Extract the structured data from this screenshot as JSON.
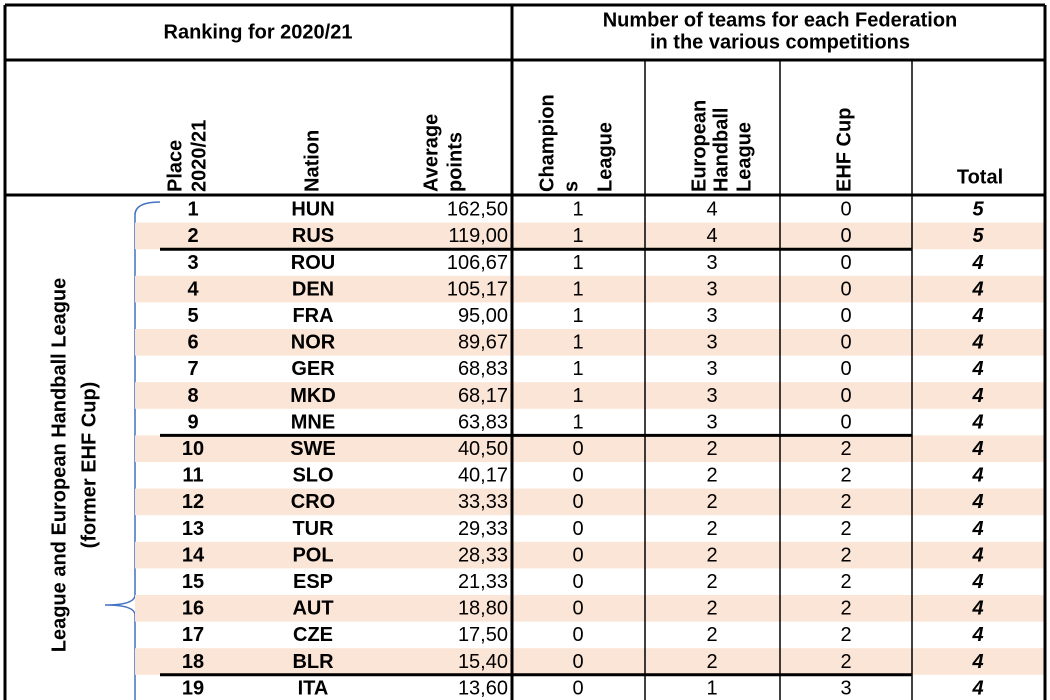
{
  "header": {
    "ranking_title": "Ranking for 2020/21",
    "teams_title": [
      "Number of teams for each Federation",
      "in the various competitions"
    ],
    "columns": {
      "place": [
        "Place",
        "2020/21"
      ],
      "nation": [
        "Nation"
      ],
      "average": [
        "Average",
        "points"
      ],
      "champions": [
        "Champion",
        "s",
        "League"
      ],
      "ehl": [
        "European",
        "Handball",
        "League"
      ],
      "ehf": [
        "EHF Cup"
      ],
      "total": "Total"
    }
  },
  "side_label": [
    "League and European Handball League",
    "(former EHF Cup)"
  ],
  "table": {
    "rows": [
      [
        "1",
        "HUN",
        "162,50",
        "1",
        "4",
        "0",
        "5"
      ],
      [
        "2",
        "RUS",
        "119,00",
        "1",
        "4",
        "0",
        "5"
      ],
      [
        "3",
        "ROU",
        "106,67",
        "1",
        "3",
        "0",
        "4"
      ],
      [
        "4",
        "DEN",
        "105,17",
        "1",
        "3",
        "0",
        "4"
      ],
      [
        "5",
        "FRA",
        "95,00",
        "1",
        "3",
        "0",
        "4"
      ],
      [
        "6",
        "NOR",
        "89,67",
        "1",
        "3",
        "0",
        "4"
      ],
      [
        "7",
        "GER",
        "68,83",
        "1",
        "3",
        "0",
        "4"
      ],
      [
        "8",
        "MKD",
        "68,17",
        "1",
        "3",
        "0",
        "4"
      ],
      [
        "9",
        "MNE",
        "63,83",
        "1",
        "3",
        "0",
        "4"
      ],
      [
        "10",
        "SWE",
        "40,50",
        "0",
        "2",
        "2",
        "4"
      ],
      [
        "11",
        "SLO",
        "40,17",
        "0",
        "2",
        "2",
        "4"
      ],
      [
        "12",
        "CRO",
        "33,33",
        "0",
        "2",
        "2",
        "4"
      ],
      [
        "13",
        "TUR",
        "29,33",
        "0",
        "2",
        "2",
        "4"
      ],
      [
        "14",
        "POL",
        "28,33",
        "0",
        "2",
        "2",
        "4"
      ],
      [
        "15",
        "ESP",
        "21,33",
        "0",
        "2",
        "2",
        "4"
      ],
      [
        "16",
        "AUT",
        "18,80",
        "0",
        "2",
        "2",
        "4"
      ],
      [
        "17",
        "CZE",
        "17,50",
        "0",
        "2",
        "2",
        "4"
      ],
      [
        "18",
        "BLR",
        "15,40",
        "0",
        "2",
        "2",
        "4"
      ],
      [
        "19",
        "ITA",
        "13,60",
        "0",
        "1",
        "3",
        "4"
      ]
    ]
  }
}
